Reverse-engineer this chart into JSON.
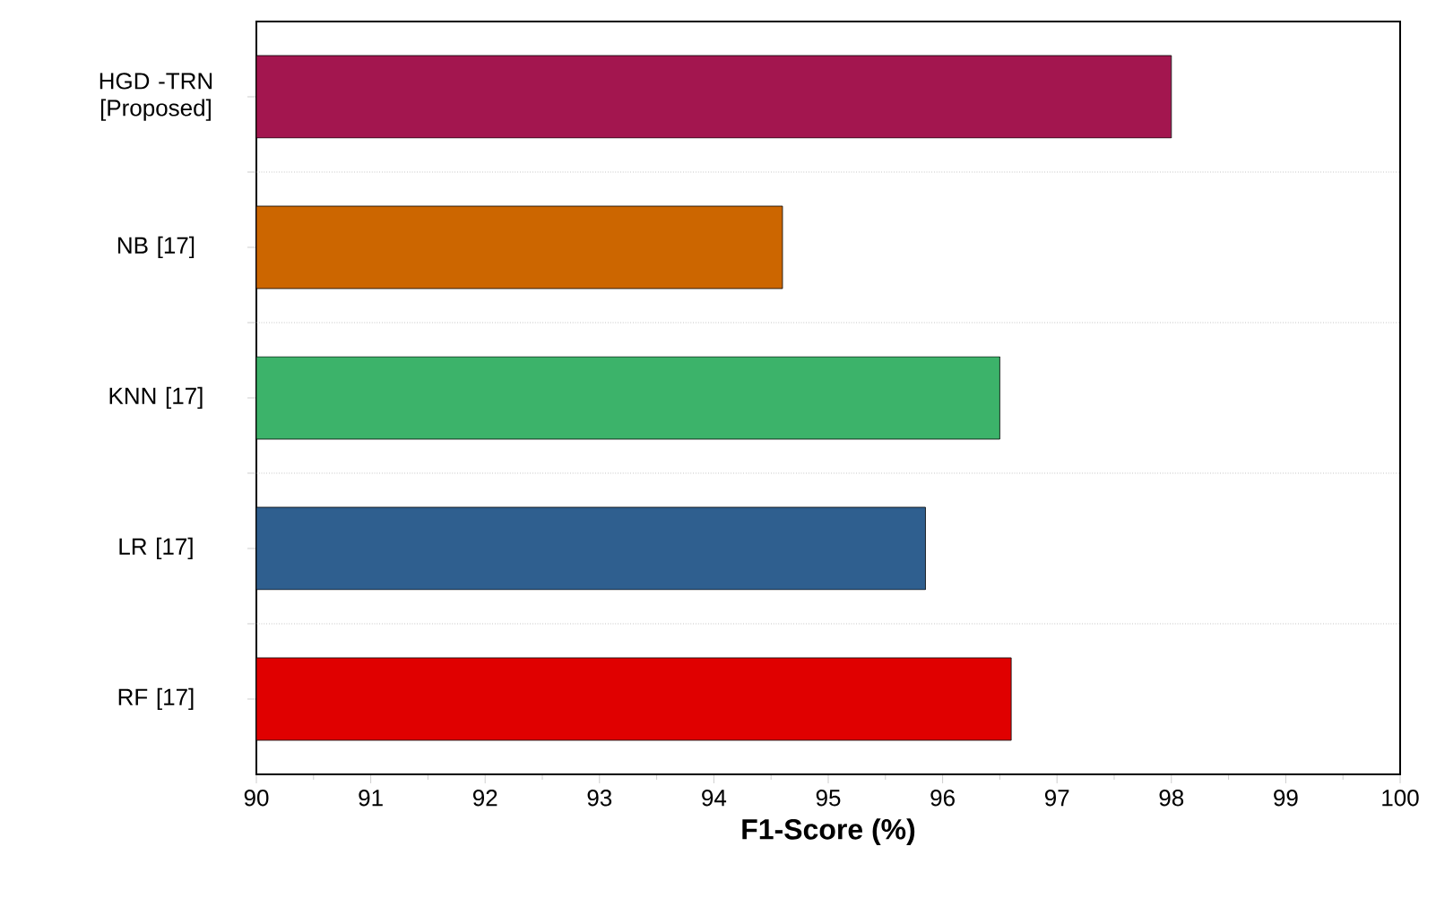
{
  "chart_data": {
    "type": "bar",
    "orientation": "horizontal",
    "xlabel": "F1-Score (%)",
    "categories": [
      "HGD -TRN [Proposed]",
      "NB [17]",
      "KNN [17]",
      "LR [17]",
      "RF [17]"
    ],
    "values": [
      98.0,
      94.6,
      96.5,
      95.85,
      96.6
    ],
    "colors": [
      "#a3164f",
      "#cc6600",
      "#3cb36a",
      "#2f5f8f",
      "#e00000"
    ],
    "xlim": [
      90,
      100
    ],
    "xticks": [
      90,
      91,
      92,
      93,
      94,
      95,
      96,
      97,
      98,
      99,
      100
    ],
    "grid": "y"
  }
}
